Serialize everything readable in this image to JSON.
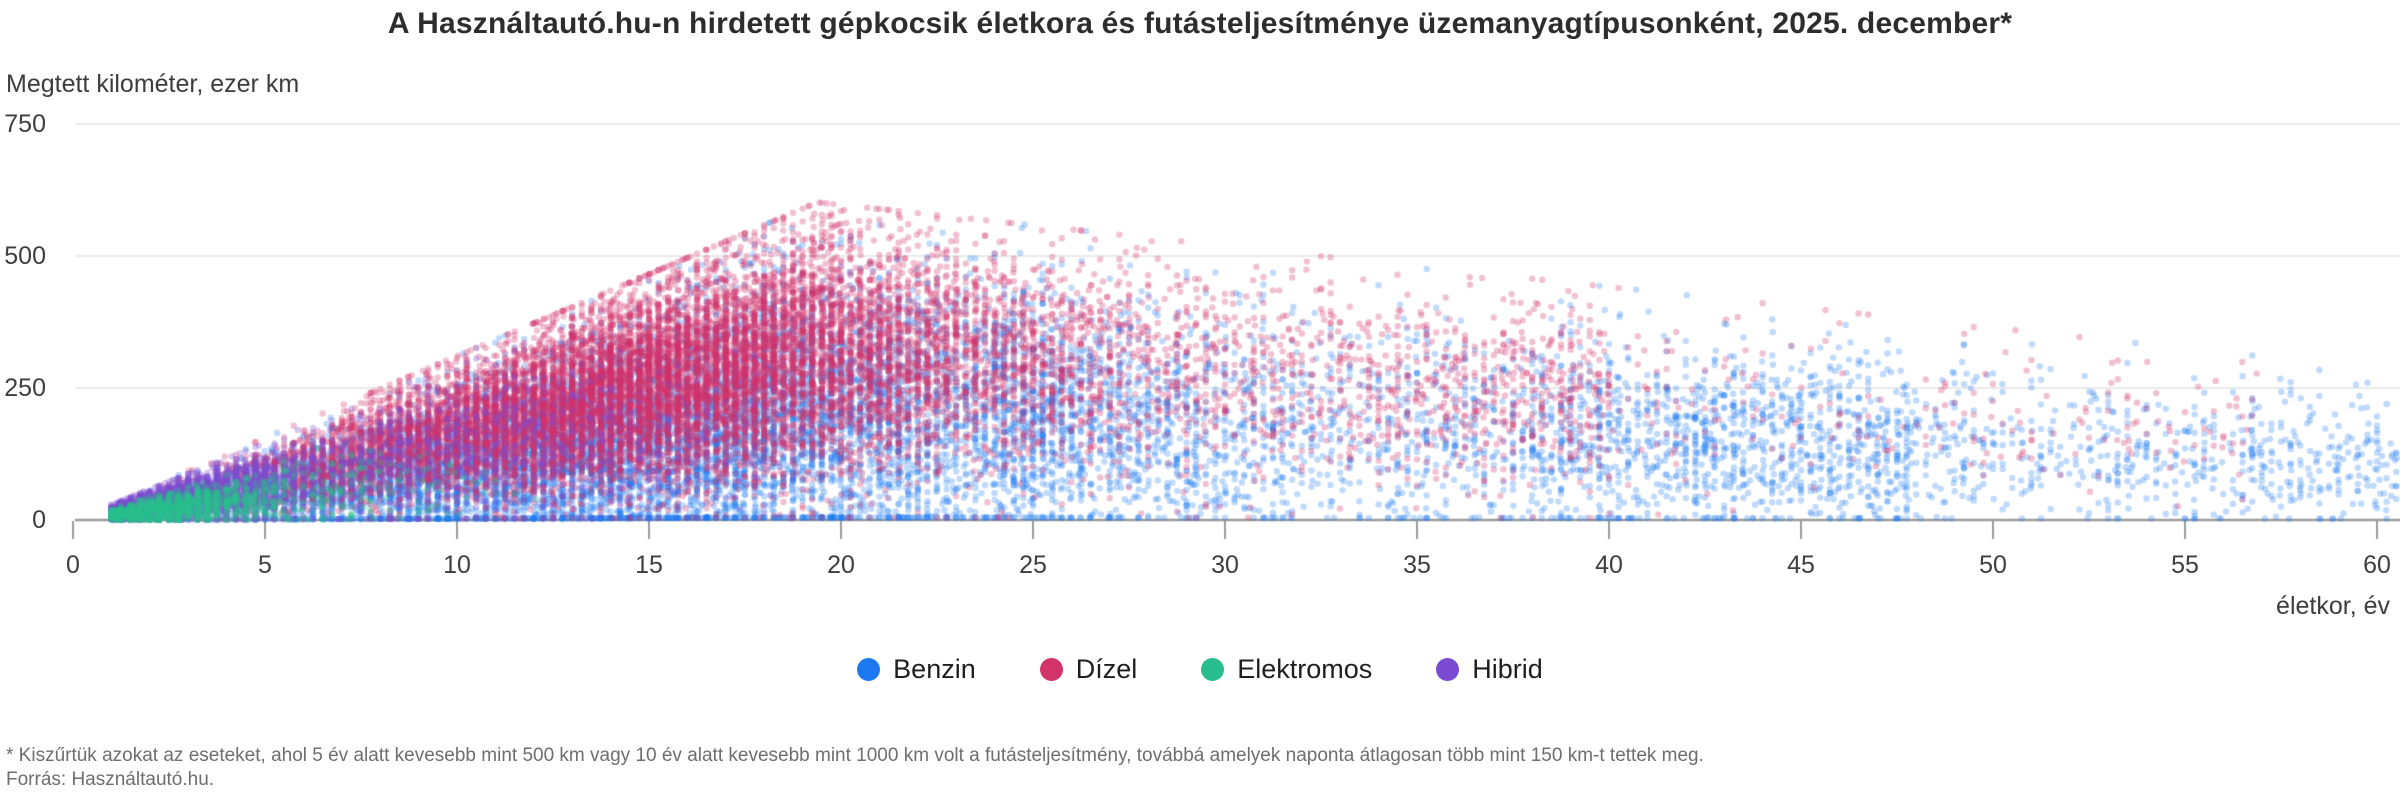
{
  "chart_data": {
    "type": "scatter",
    "title": "A Használtautó.hu-n hirdetett gépkocsik életkora és futásteljesítménye üzemanyagtípusonként, 2025. december*",
    "ylabel": "Megtett kilométer, ezer km",
    "xlabel": "életkor, év",
    "x_ticks": [
      0,
      5,
      10,
      15,
      20,
      25,
      30,
      35,
      40,
      45,
      50,
      55,
      60
    ],
    "y_ticks": [
      0,
      250,
      500,
      750
    ],
    "xlim": [
      0,
      62
    ],
    "ylim": [
      0,
      750
    ],
    "grid": "horizontal-only",
    "legend_position": "bottom-center",
    "point_radius_px": 3.2,
    "series": [
      {
        "name": "Benzin",
        "color": "#1d79f2",
        "alpha": 0.28,
        "count": 13500,
        "draw_order": 1,
        "age_mix": [
          {
            "w": 0.76,
            "kind": "normal",
            "mu": 14.5,
            "sigma": 6.8,
            "min": 1,
            "max": 32
          },
          {
            "w": 0.15,
            "kind": "power",
            "from": 24,
            "span": 24,
            "exp": 1.3
          },
          {
            "w": 0.09,
            "kind": "power",
            "from": 38,
            "span": 24.5,
            "exp": 1.1
          }
        ],
        "km_frac": {
          "mu": 0.34,
          "sigma": 0.21
        },
        "cap": {
          "slope": 32,
          "flat": 620,
          "decline_from": 19.4,
          "decline_rate": 8,
          "floor": 270
        }
      },
      {
        "name": "Dízel",
        "color": "#d23369",
        "alpha": 0.3,
        "count": 15000,
        "draw_order": 2,
        "age_mix": [
          {
            "w": 0.9,
            "kind": "normal",
            "mu": 14.8,
            "sigma": 5.3,
            "min": 1.5,
            "max": 30
          },
          {
            "w": 0.08,
            "kind": "power",
            "from": 24,
            "span": 16,
            "exp": 1.0
          },
          {
            "w": 0.02,
            "kind": "power",
            "from": 36,
            "span": 21,
            "exp": 1.0
          }
        ],
        "km_frac": {
          "mu": 0.52,
          "sigma": 0.19
        },
        "cap": {
          "slope": 32,
          "flat": 620,
          "decline_from": 19.4,
          "decline_rate": 8,
          "floor": 270
        }
      },
      {
        "name": "Hibrid",
        "color": "#7a4bd0",
        "alpha": 0.3,
        "count": 4200,
        "draw_order": 3,
        "age_mix": [
          {
            "w": 0.7,
            "kind": "halfnormal",
            "mu": 1,
            "sigma": 2.3,
            "min": 1,
            "max": 9
          },
          {
            "w": 0.3,
            "kind": "normal",
            "mu": 8.5,
            "sigma": 4.5,
            "min": 1.5,
            "max": 23
          }
        ],
        "km_frac": {
          "mu": 0.45,
          "sigma": 0.22
        },
        "cap": {
          "slope": 30,
          "flat": 330
        }
      },
      {
        "name": "Elektromos",
        "color": "#27bd8d",
        "alpha": 0.32,
        "count": 1500,
        "draw_order": 4,
        "age_mix": [
          {
            "w": 0.85,
            "kind": "halfnormal",
            "mu": 1,
            "sigma": 2.0,
            "min": 1,
            "max": 9
          },
          {
            "w": 0.15,
            "kind": "normal",
            "mu": 6,
            "sigma": 2.5,
            "min": 2,
            "max": 13
          }
        ],
        "km_frac": {
          "mu": 0.4,
          "sigma": 0.22
        },
        "cap": {
          "slope": 22,
          "flat": 165
        }
      }
    ],
    "legend_order": [
      "Benzin",
      "Dízel",
      "Elektromos",
      "Hibrid"
    ]
  },
  "colors": {
    "grid_line": "#e3e3e3",
    "axis_line": "#9c9c9c",
    "tick_mark": "#9c9c9c",
    "title_text": "#2d2d2d",
    "tick_label": "#3e3e3e",
    "footer_text": "#6e6e6e",
    "background": "#ffffff"
  },
  "footer": {
    "note": "* Kiszűrtük azokat az eseteket, ahol 5 év alatt kevesebb mint 500 km vagy 10 év alatt kevesebb mint 1000 km volt a futásteljesítmény, továbbá amelyek naponta átlagosan több mint 150 km-t tettek meg.",
    "source": "Forrás: Használtautó.hu."
  }
}
